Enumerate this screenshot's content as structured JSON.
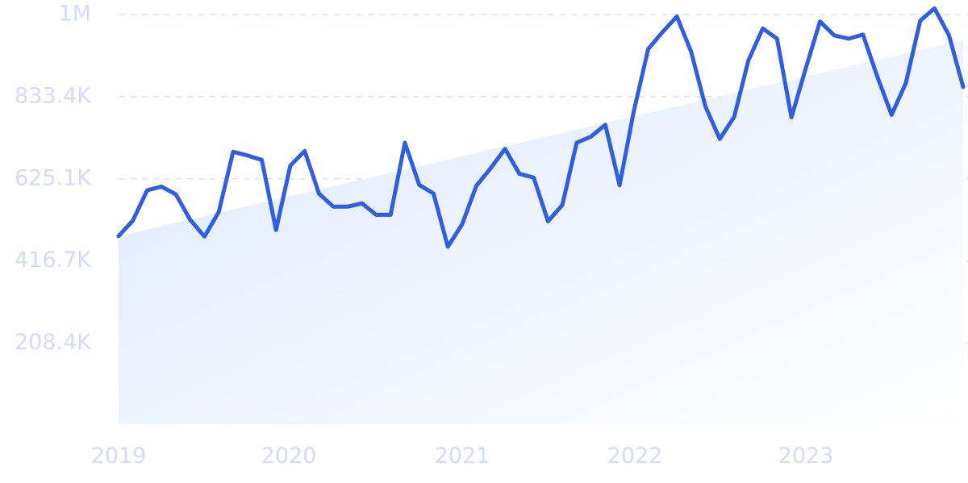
{
  "chart_data": {
    "type": "line",
    "x_axis_type": "time",
    "x_tick_labels": [
      "2019",
      "2020",
      "2021",
      "2022",
      "2023"
    ],
    "y_tick_labels": [
      "1M",
      "833.4K",
      "625.1K",
      "416.7K",
      "208.4K"
    ],
    "ylim": [
      0,
      1000000
    ],
    "grid": true,
    "legend": "none",
    "title": "",
    "xlabel": "",
    "ylabel": "",
    "colors": {
      "line": "#2f5fe0",
      "trend_fill": "#dde9fb",
      "tick_text": "#d3dcf6",
      "grid": "#d9e1f5"
    },
    "series": [
      {
        "x": [
          "2019-01",
          "2019-02",
          "2019-03",
          "2019-04",
          "2019-05",
          "2019-06",
          "2019-07",
          "2019-08",
          "2019-09",
          "2019-10",
          "2019-11",
          "2019-12",
          "2020-01",
          "2020-02",
          "2020-03",
          "2020-04",
          "2020-05",
          "2020-06",
          "2020-07",
          "2020-08",
          "2020-09",
          "2020-10",
          "2020-11",
          "2020-12",
          "2021-01",
          "2021-02",
          "2021-03",
          "2021-04",
          "2021-05",
          "2021-06",
          "2021-07",
          "2021-08",
          "2021-09",
          "2021-10",
          "2021-11",
          "2021-12",
          "2022-01",
          "2022-02",
          "2022-03",
          "2022-04",
          "2022-05",
          "2022-06",
          "2022-07",
          "2022-08",
          "2022-09",
          "2022-10",
          "2022-11",
          "2022-12",
          "2023-01",
          "2023-02",
          "2023-03",
          "2023-04",
          "2023-05",
          "2023-06",
          "2023-07",
          "2023-08",
          "2023-09",
          "2023-10",
          "2023-11",
          "2023-12"
        ],
        "values": [
          459000,
          497000,
          571000,
          580000,
          561000,
          499000,
          458000,
          518000,
          665000,
          656000,
          645000,
          474000,
          631000,
          667000,
          563000,
          531000,
          531000,
          539000,
          511000,
          511000,
          687000,
          584000,
          563000,
          433000,
          488000,
          582000,
          625000,
          672000,
          611000,
          602000,
          495000,
          535000,
          687000,
          702000,
          731000,
          583000,
          765000,
          916000,
          957000,
          995000,
          909000,
          775000,
          696000,
          750000,
          888000,
          966000,
          941000,
          749000,
          868000,
          983000,
          949000,
          941000,
          951000,
          849000,
          755000,
          833000,
          985000,
          1015000,
          950000,
          823000
        ]
      },
      {
        "trend_start": 459000,
        "trend_end": 938000
      }
    ]
  }
}
